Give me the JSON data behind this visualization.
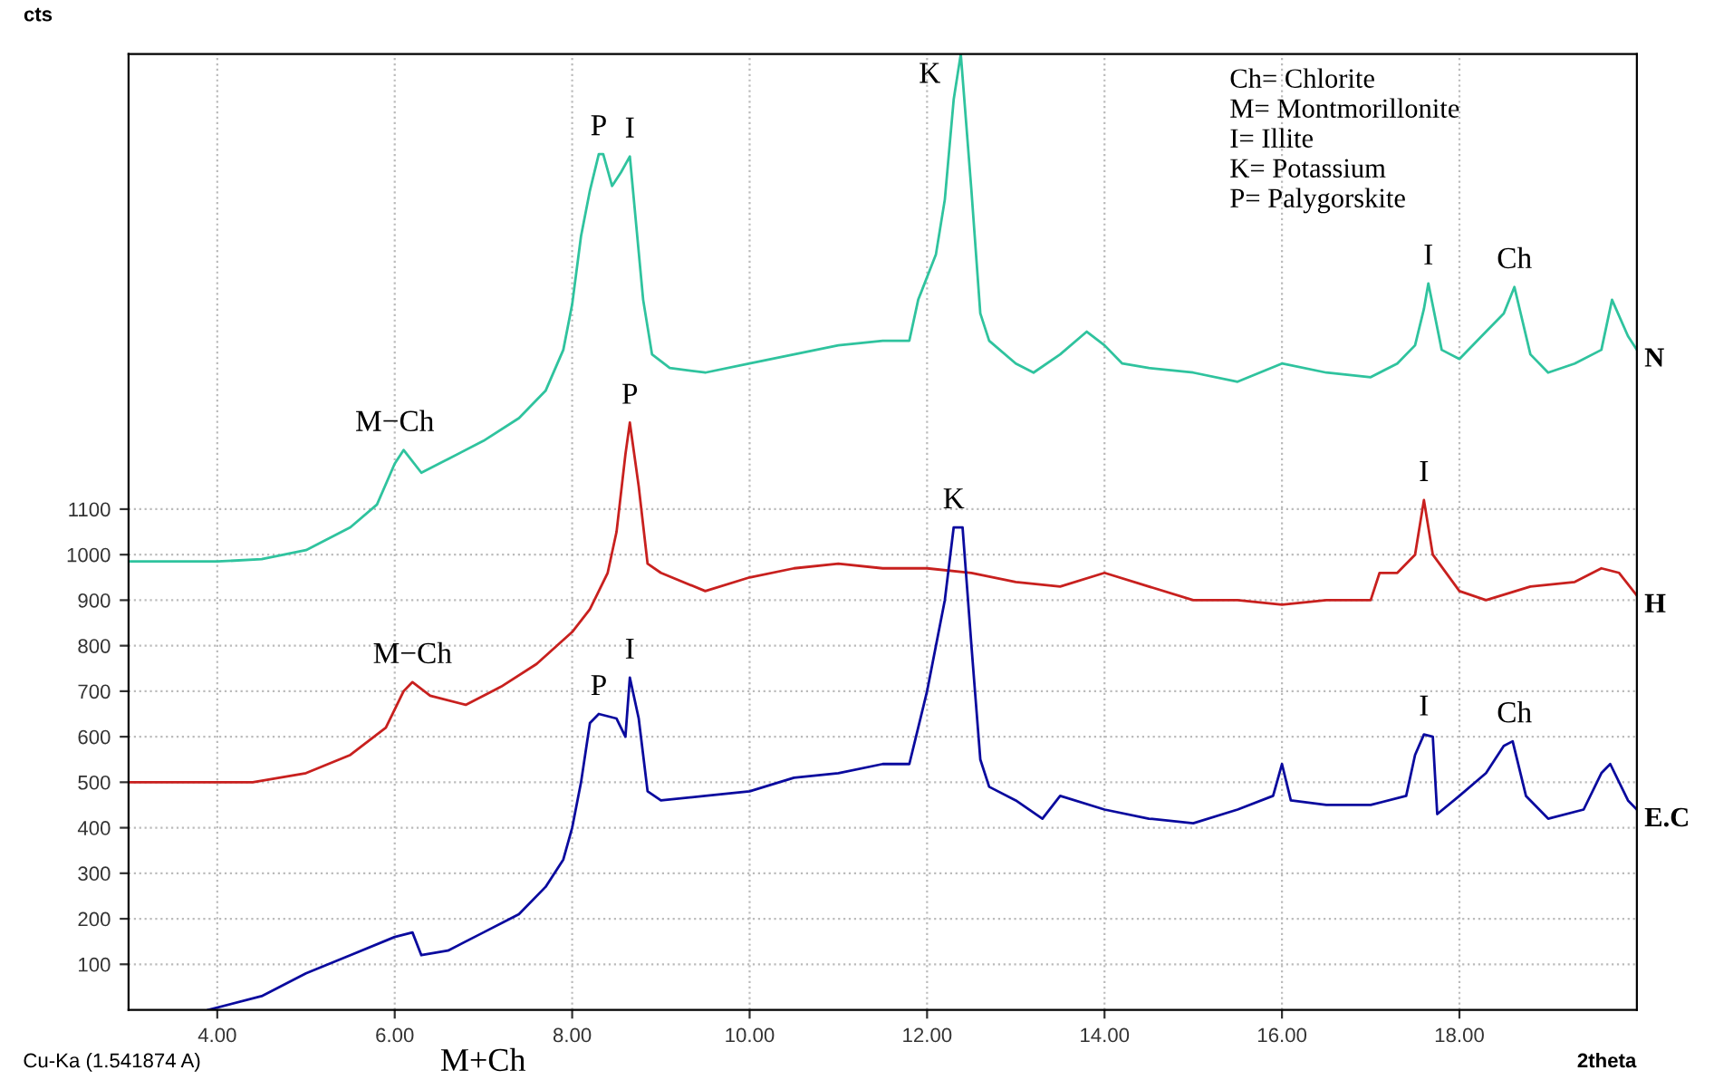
{
  "chart_data": {
    "type": "line",
    "xlabel": "2theta",
    "ylabel": "cts",
    "xlim": [
      3.0,
      20.0
    ],
    "ylim": [
      0,
      2100
    ],
    "xticks": [
      {
        "value": 4,
        "label": "4.00"
      },
      {
        "value": 6,
        "label": "6.00"
      },
      {
        "value": 8,
        "label": "8.00"
      },
      {
        "value": 10,
        "label": "10.00"
      },
      {
        "value": 12,
        "label": "12.00"
      },
      {
        "value": 14,
        "label": "14.00"
      },
      {
        "value": 16,
        "label": "16.00"
      },
      {
        "value": 18,
        "label": "18.00"
      }
    ],
    "yticks": [
      100,
      200,
      300,
      400,
      500,
      600,
      700,
      800,
      900,
      1000,
      1100
    ],
    "grid": true,
    "marker": "none",
    "line_style": "solid",
    "legend": false,
    "series": [
      {
        "name": "N",
        "color": "#2fc39e",
        "x": [
          3.0,
          4.0,
          4.5,
          5.0,
          5.5,
          5.8,
          6.0,
          6.1,
          6.3,
          6.6,
          7.0,
          7.4,
          7.7,
          7.9,
          8.0,
          8.1,
          8.2,
          8.3,
          8.35,
          8.45,
          8.55,
          8.65,
          8.8,
          8.9,
          9.1,
          9.5,
          10.0,
          10.5,
          11.0,
          11.5,
          11.8,
          11.9,
          12.1,
          12.2,
          12.3,
          12.38,
          12.5,
          12.6,
          12.7,
          13.0,
          13.2,
          13.5,
          13.8,
          14.0,
          14.2,
          14.5,
          15.0,
          15.5,
          16.0,
          16.5,
          17.0,
          17.3,
          17.5,
          17.6,
          17.65,
          17.8,
          18.0,
          18.3,
          18.5,
          18.62,
          18.8,
          19.0,
          19.3,
          19.6,
          19.72,
          19.9,
          20.0
        ],
        "values": [
          985,
          985,
          990,
          1010,
          1060,
          1110,
          1200,
          1230,
          1180,
          1210,
          1250,
          1300,
          1360,
          1450,
          1550,
          1700,
          1800,
          1880,
          1880,
          1810,
          1840,
          1875,
          1560,
          1440,
          1410,
          1400,
          1420,
          1440,
          1460,
          1470,
          1470,
          1560,
          1660,
          1780,
          2000,
          2100,
          1800,
          1530,
          1470,
          1420,
          1400,
          1440,
          1490,
          1460,
          1420,
          1410,
          1400,
          1380,
          1420,
          1400,
          1390,
          1420,
          1460,
          1540,
          1596,
          1450,
          1430,
          1490,
          1530,
          1588,
          1440,
          1400,
          1420,
          1450,
          1560,
          1480,
          1450
        ]
      },
      {
        "name": "H",
        "color": "#c8201e",
        "x": [
          3.0,
          4.4,
          5.0,
          5.5,
          5.9,
          6.1,
          6.2,
          6.4,
          6.8,
          7.2,
          7.6,
          8.0,
          8.2,
          8.4,
          8.5,
          8.6,
          8.65,
          8.75,
          8.85,
          9.0,
          9.5,
          10.0,
          10.5,
          11.0,
          11.5,
          12.0,
          12.5,
          13.0,
          13.5,
          14.0,
          14.5,
          15.0,
          15.5,
          16.0,
          16.5,
          17.0,
          17.1,
          17.3,
          17.5,
          17.6,
          17.7,
          18.0,
          18.3,
          18.8,
          19.3,
          19.6,
          19.8,
          20.0
        ],
        "values": [
          500,
          500,
          520,
          560,
          620,
          700,
          720,
          690,
          670,
          710,
          760,
          830,
          880,
          960,
          1050,
          1220,
          1290,
          1150,
          980,
          960,
          920,
          950,
          970,
          980,
          970,
          970,
          960,
          940,
          930,
          960,
          930,
          900,
          900,
          890,
          900,
          900,
          960,
          960,
          1000,
          1120,
          1000,
          920,
          900,
          930,
          940,
          970,
          960,
          910
        ]
      },
      {
        "name": "E.C",
        "color": "#0a0a9e",
        "x": [
          3.9,
          4.5,
          5.0,
          5.5,
          6.0,
          6.2,
          6.3,
          6.6,
          7.0,
          7.4,
          7.7,
          7.9,
          8.0,
          8.1,
          8.2,
          8.3,
          8.5,
          8.6,
          8.65,
          8.75,
          8.85,
          9.0,
          9.5,
          10.0,
          10.5,
          11.0,
          11.5,
          11.8,
          11.9,
          12.0,
          12.2,
          12.3,
          12.4,
          12.5,
          12.6,
          12.7,
          13.0,
          13.3,
          13.5,
          14.0,
          14.5,
          15.0,
          15.5,
          15.9,
          16.0,
          16.1,
          16.5,
          17.0,
          17.4,
          17.5,
          17.6,
          17.7,
          17.75,
          18.0,
          18.3,
          18.5,
          18.6,
          18.75,
          19.0,
          19.4,
          19.6,
          19.7,
          19.9,
          20.0
        ],
        "values": [
          0,
          30,
          80,
          120,
          160,
          170,
          120,
          130,
          170,
          210,
          270,
          330,
          400,
          500,
          630,
          650,
          640,
          600,
          730,
          640,
          480,
          460,
          470,
          480,
          510,
          520,
          540,
          540,
          620,
          700,
          900,
          1060,
          1060,
          800,
          550,
          490,
          460,
          420,
          470,
          440,
          420,
          410,
          440,
          470,
          540,
          460,
          450,
          450,
          470,
          560,
          605,
          600,
          430,
          470,
          520,
          580,
          590,
          470,
          420,
          440,
          520,
          540,
          460,
          440
        ]
      }
    ],
    "annotations": [
      "Ch= Chlorite\nM= Montmorillonite\nI= Illite\nK= Potassium\nP= Palygorskite",
      "M+Ch",
      "Cu-Ka (1.541874 A)",
      {
        "text": "M−Ch",
        "x": 6.0,
        "y": 1230
      },
      {
        "text": "P",
        "x": 8.3,
        "y": 1880
      },
      {
        "text": "I",
        "x": 8.65,
        "y": 1875
      },
      {
        "text": "K",
        "x": 12.38,
        "y": 2100
      },
      {
        "text": "I",
        "x": 17.65,
        "y": 1596
      },
      {
        "text": "Ch",
        "x": 18.62,
        "y": 1588
      },
      {
        "text": "M−Ch",
        "x": 6.2,
        "y": 720
      },
      {
        "text": "P",
        "x": 8.65,
        "y": 1290
      },
      {
        "text": "I",
        "x": 17.6,
        "y": 1120
      },
      {
        "text": "P",
        "x": 8.3,
        "y": 650
      },
      {
        "text": "I",
        "x": 8.65,
        "y": 730
      },
      {
        "text": "K",
        "x": 12.3,
        "y": 1060
      },
      {
        "text": "I",
        "x": 17.6,
        "y": 605
      },
      {
        "text": "Ch",
        "x": 18.62,
        "y": 590
      }
    ]
  }
}
